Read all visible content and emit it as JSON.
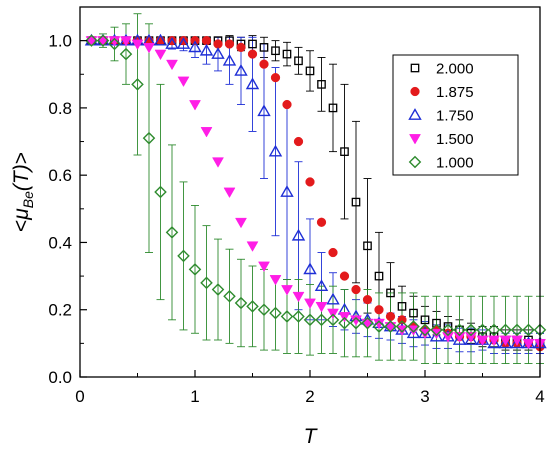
{
  "chart_data": {
    "type": "scatter",
    "xlabel": "T",
    "ylabel_parts": [
      "<",
      "μ",
      "Be",
      "(T)",
      ">"
    ],
    "xlim": [
      0,
      4
    ],
    "ylim": [
      0,
      1.1
    ],
    "x_ticks": [
      0,
      1,
      2,
      3,
      4
    ],
    "y_ticks": [
      0.0,
      0.2,
      0.4,
      0.6,
      0.8,
      1.0
    ],
    "x_tick_labels": [
      "0",
      "1",
      "2",
      "3",
      "4"
    ],
    "y_tick_labels": [
      "0.0",
      "0.2",
      "0.4",
      "0.6",
      "0.8",
      "1.0"
    ],
    "grid": false,
    "legend_position": "top-right",
    "series": [
      {
        "name": "2.000",
        "color": "#000000",
        "marker": "open-square",
        "x": [
          0.1,
          0.2,
          0.3,
          0.4,
          0.5,
          0.6,
          0.7,
          0.8,
          0.9,
          1.0,
          1.1,
          1.2,
          1.3,
          1.4,
          1.5,
          1.6,
          1.7,
          1.8,
          1.9,
          2.0,
          2.1,
          2.2,
          2.3,
          2.4,
          2.5,
          2.6,
          2.7,
          2.8,
          2.9,
          3.0,
          3.1,
          3.2,
          3.3,
          3.4,
          3.5,
          3.6,
          3.7,
          3.8,
          3.9,
          4.0
        ],
        "y": [
          1.0,
          1.0,
          1.0,
          1.0,
          1.0,
          1.0,
          1.0,
          1.0,
          1.0,
          1.0,
          1.0,
          1.0,
          1.0,
          0.99,
          0.99,
          0.98,
          0.97,
          0.96,
          0.94,
          0.91,
          0.87,
          0.8,
          0.67,
          0.52,
          0.39,
          0.3,
          0.25,
          0.21,
          0.19,
          0.17,
          0.16,
          0.15,
          0.14,
          0.13,
          0.12,
          0.12,
          0.11,
          0.11,
          0.11,
          0.1
        ],
        "err": [
          0.0,
          0.0,
          0.0,
          0.0,
          0.0,
          0.0,
          0.0,
          0.0,
          0.0,
          0.005,
          0.01,
          0.01,
          0.015,
          0.02,
          0.025,
          0.03,
          0.03,
          0.035,
          0.04,
          0.06,
          0.08,
          0.13,
          0.2,
          0.24,
          0.2,
          0.13,
          0.09,
          0.06,
          0.05,
          0.04,
          0.035,
          0.03,
          0.03,
          0.03,
          0.03,
          0.03,
          0.03,
          0.03,
          0.03,
          0.03
        ]
      },
      {
        "name": "1.875",
        "color": "#e31a1c",
        "marker": "filled-circle",
        "x": [
          0.1,
          0.2,
          0.3,
          0.4,
          0.5,
          0.6,
          0.7,
          0.8,
          0.9,
          1.0,
          1.1,
          1.2,
          1.3,
          1.4,
          1.5,
          1.6,
          1.7,
          1.8,
          1.9,
          2.0,
          2.1,
          2.2,
          2.3,
          2.4,
          2.5,
          2.6,
          2.7,
          2.8,
          2.9,
          3.0,
          3.1,
          3.2,
          3.3,
          3.4,
          3.5,
          3.6,
          3.7,
          3.8,
          3.9,
          4.0
        ],
        "y": [
          1.0,
          1.0,
          1.0,
          1.0,
          1.0,
          1.0,
          1.0,
          1.0,
          1.0,
          1.0,
          1.0,
          0.99,
          0.99,
          0.98,
          0.96,
          0.93,
          0.89,
          0.81,
          0.7,
          0.58,
          0.46,
          0.37,
          0.3,
          0.26,
          0.23,
          0.2,
          0.18,
          0.17,
          0.15,
          0.14,
          0.14,
          0.13,
          0.12,
          0.12,
          0.11,
          0.11,
          0.1,
          0.1,
          0.1,
          0.09
        ],
        "err": []
      },
      {
        "name": "1.750",
        "color": "#1f2fd6",
        "marker": "open-triangle-up",
        "x": [
          0.1,
          0.2,
          0.3,
          0.4,
          0.5,
          0.6,
          0.7,
          0.8,
          0.9,
          1.0,
          1.1,
          1.2,
          1.3,
          1.4,
          1.5,
          1.6,
          1.7,
          1.8,
          1.9,
          2.0,
          2.1,
          2.2,
          2.3,
          2.4,
          2.5,
          2.6,
          2.7,
          2.8,
          2.9,
          3.0,
          3.1,
          3.2,
          3.3,
          3.4,
          3.5,
          3.6,
          3.7,
          3.8,
          3.9,
          4.0
        ],
        "y": [
          1.0,
          1.0,
          1.0,
          1.0,
          1.0,
          1.0,
          1.0,
          0.99,
          0.99,
          0.98,
          0.97,
          0.96,
          0.94,
          0.91,
          0.87,
          0.79,
          0.67,
          0.55,
          0.42,
          0.32,
          0.27,
          0.23,
          0.2,
          0.18,
          0.17,
          0.16,
          0.15,
          0.14,
          0.13,
          0.13,
          0.12,
          0.12,
          0.11,
          0.11,
          0.11,
          0.1,
          0.1,
          0.1,
          0.1,
          0.1
        ],
        "err": [
          0.0,
          0.0,
          0.0,
          0.0,
          0.0,
          0.005,
          0.01,
          0.015,
          0.02,
          0.03,
          0.04,
          0.05,
          0.07,
          0.1,
          0.14,
          0.2,
          0.25,
          0.26,
          0.22,
          0.15,
          0.1,
          0.08,
          0.06,
          0.05,
          0.05,
          0.045,
          0.04,
          0.04,
          0.04,
          0.035,
          0.035,
          0.035,
          0.035,
          0.035,
          0.03,
          0.03,
          0.03,
          0.03,
          0.03,
          0.03
        ]
      },
      {
        "name": "1.500",
        "color": "#ff1ee6",
        "marker": "filled-triangle-down",
        "x": [
          0.1,
          0.2,
          0.3,
          0.4,
          0.5,
          0.6,
          0.7,
          0.8,
          0.9,
          1.0,
          1.1,
          1.2,
          1.3,
          1.4,
          1.5,
          1.6,
          1.7,
          1.8,
          1.9,
          2.0,
          2.1,
          2.2,
          2.3,
          2.4,
          2.5,
          2.6,
          2.7,
          2.8,
          2.9,
          3.0,
          3.1,
          3.2,
          3.3,
          3.4,
          3.5,
          3.6,
          3.7,
          3.8,
          3.9,
          4.0
        ],
        "y": [
          1.0,
          1.0,
          1.0,
          1.0,
          0.99,
          0.98,
          0.96,
          0.93,
          0.88,
          0.81,
          0.73,
          0.64,
          0.55,
          0.46,
          0.39,
          0.33,
          0.29,
          0.26,
          0.24,
          0.22,
          0.21,
          0.19,
          0.18,
          0.17,
          0.16,
          0.16,
          0.15,
          0.14,
          0.14,
          0.13,
          0.13,
          0.12,
          0.12,
          0.12,
          0.11,
          0.11,
          0.11,
          0.11,
          0.1,
          0.1
        ],
        "err": []
      },
      {
        "name": "1.000",
        "color": "#2e8b2e",
        "marker": "open-diamond",
        "x": [
          0.1,
          0.2,
          0.3,
          0.4,
          0.5,
          0.6,
          0.7,
          0.8,
          0.9,
          1.0,
          1.1,
          1.2,
          1.3,
          1.4,
          1.5,
          1.6,
          1.7,
          1.8,
          1.9,
          2.0,
          2.1,
          2.2,
          2.3,
          2.4,
          2.5,
          2.6,
          2.7,
          2.8,
          2.9,
          3.0,
          3.1,
          3.2,
          3.3,
          3.4,
          3.5,
          3.6,
          3.7,
          3.8,
          3.9,
          4.0
        ],
        "y": [
          1.0,
          1.0,
          0.99,
          0.96,
          0.87,
          0.71,
          0.55,
          0.43,
          0.36,
          0.32,
          0.28,
          0.26,
          0.24,
          0.22,
          0.21,
          0.2,
          0.19,
          0.18,
          0.18,
          0.17,
          0.17,
          0.17,
          0.16,
          0.16,
          0.16,
          0.15,
          0.15,
          0.15,
          0.15,
          0.14,
          0.14,
          0.14,
          0.14,
          0.14,
          0.14,
          0.14,
          0.14,
          0.14,
          0.14,
          0.14
        ],
        "err": [
          0.0,
          0.02,
          0.05,
          0.09,
          0.21,
          0.34,
          0.32,
          0.26,
          0.22,
          0.19,
          0.17,
          0.15,
          0.14,
          0.13,
          0.12,
          0.12,
          0.11,
          0.11,
          0.11,
          0.105,
          0.1,
          0.1,
          0.1,
          0.1,
          0.1,
          0.1,
          0.1,
          0.1,
          0.1,
          0.1,
          0.1,
          0.1,
          0.1,
          0.1,
          0.1,
          0.1,
          0.1,
          0.1,
          0.1,
          0.1
        ]
      }
    ]
  }
}
